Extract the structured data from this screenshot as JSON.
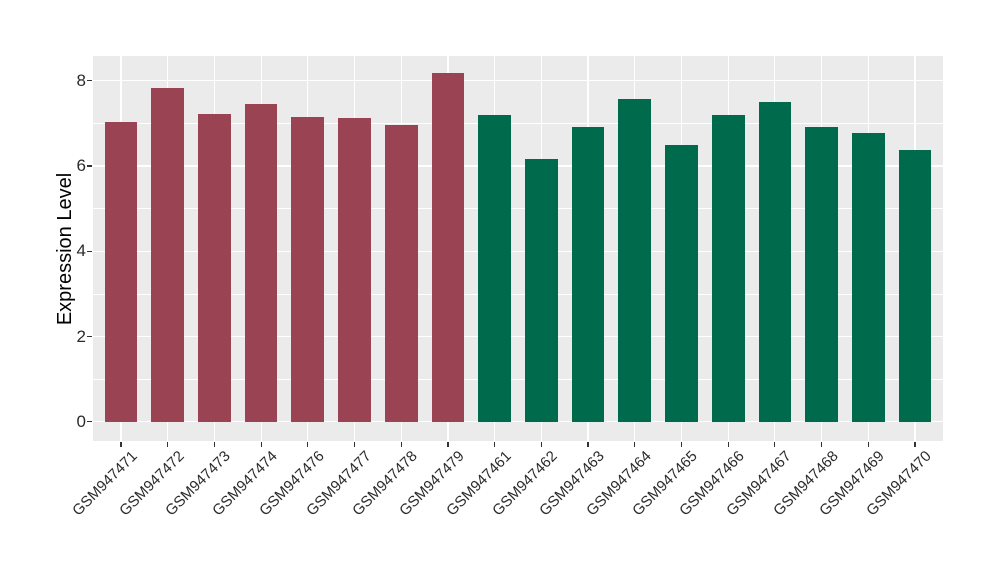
{
  "chart_data": {
    "type": "bar",
    "title": "",
    "xlabel": "",
    "ylabel": "Expression Level",
    "categories": [
      "GSM947471",
      "GSM947472",
      "GSM947473",
      "GSM947474",
      "GSM947476",
      "GSM947477",
      "GSM947478",
      "GSM947479",
      "GSM947461",
      "GSM947462",
      "GSM947463",
      "GSM947464",
      "GSM947465",
      "GSM947466",
      "GSM947467",
      "GSM947468",
      "GSM947469",
      "GSM947470"
    ],
    "values": [
      7.03,
      7.82,
      7.22,
      7.45,
      7.15,
      7.12,
      6.97,
      8.17,
      7.19,
      6.16,
      6.92,
      7.56,
      6.5,
      7.2,
      7.49,
      6.92,
      6.78,
      6.37
    ],
    "groups": [
      "maroon",
      "maroon",
      "maroon",
      "maroon",
      "maroon",
      "maroon",
      "maroon",
      "maroon",
      "green",
      "green",
      "green",
      "green",
      "green",
      "green",
      "green",
      "green",
      "green",
      "green"
    ],
    "group_colors": {
      "maroon": "#9A4352",
      "green": "#006B4C"
    },
    "ylim": [
      -0.45,
      8.58
    ],
    "yticks": [
      0,
      2,
      4,
      6,
      8
    ],
    "minor_yticks": [
      1,
      3,
      5,
      7
    ],
    "bar_width_frac": 0.7,
    "grid": true,
    "legend": "none",
    "panel_bg": "#EBEBEB",
    "grid_color": "#FFFFFF"
  }
}
